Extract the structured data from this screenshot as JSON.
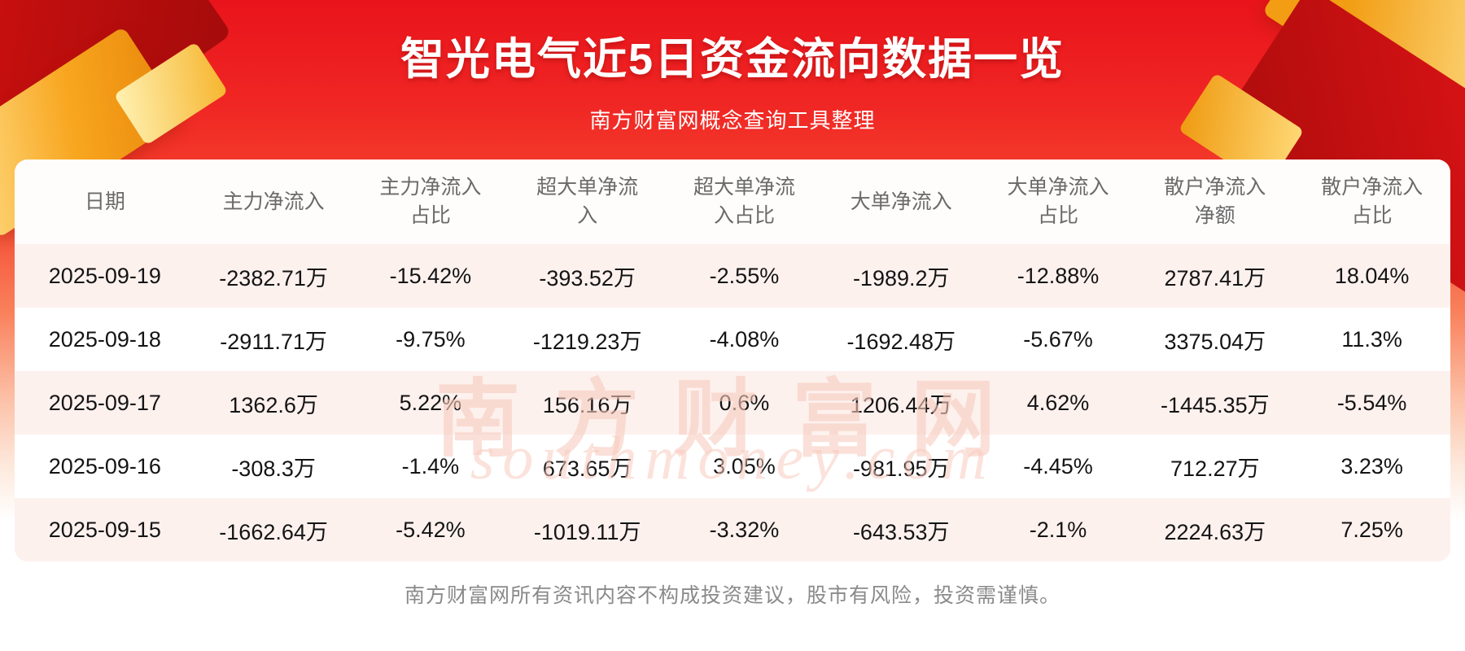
{
  "header": {
    "title": "智光电气近5日资金流向数据一览",
    "subtitle": "南方财富网概念查询工具整理"
  },
  "chart_data": {
    "type": "table",
    "title": "智光电气近5日资金流向数据一览",
    "columns": [
      "日期",
      "主力净流入",
      "主力净流入占比",
      "超大单净流入",
      "超大单净流入占比",
      "大单净流入",
      "大单净流入占比",
      "散户净流入净额",
      "散户净流入占比"
    ],
    "rows": [
      [
        "2025-09-19",
        "-2382.71万",
        "-15.42%",
        "-393.52万",
        "-2.55%",
        "-1989.2万",
        "-12.88%",
        "2787.41万",
        "18.04%"
      ],
      [
        "2025-09-18",
        "-2911.71万",
        "-9.75%",
        "-1219.23万",
        "-4.08%",
        "-1692.48万",
        "-5.67%",
        "3375.04万",
        "11.3%"
      ],
      [
        "2025-09-17",
        "1362.6万",
        "5.22%",
        "156.16万",
        "0.6%",
        "1206.44万",
        "4.62%",
        "-1445.35万",
        "-5.54%"
      ],
      [
        "2025-09-16",
        "-308.3万",
        "-1.4%",
        "673.65万",
        "3.05%",
        "-981.95万",
        "-4.45%",
        "712.27万",
        "3.23%"
      ],
      [
        "2025-09-15",
        "-1662.64万",
        "-5.42%",
        "-1019.11万",
        "-3.32%",
        "-643.53万",
        "-2.1%",
        "2224.63万",
        "7.25%"
      ]
    ]
  },
  "watermark": {
    "text_cn": "南方财富网",
    "text_en": "southmoney.com"
  },
  "footer": {
    "disclaimer": "南方财富网所有资讯内容不构成投资建议，股市有风险，投资需谨慎。"
  },
  "colors": {
    "accent_red": "#e9141b",
    "gold": "#f8a61f",
    "row_alt": "#fdf1ee",
    "watermark_pink": "#f7cbbe"
  }
}
